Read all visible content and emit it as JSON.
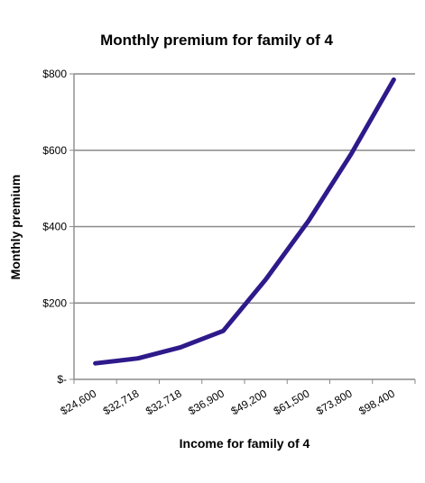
{
  "chart_data": {
    "type": "line",
    "title": "Monthly premium for family of 4",
    "xlabel": "Income for family of 4",
    "ylabel": "Monthly premium",
    "categories": [
      "$24,600",
      "$32,718",
      "$32,718",
      "$36,900",
      "$49,200",
      "$61,500",
      "$73,800",
      "$98,400"
    ],
    "series": [
      {
        "values": [
          42,
          55,
          84,
          127,
          262,
          415,
          590,
          785
        ],
        "color": "#2e1a8a"
      }
    ],
    "ylim": [
      0,
      800
    ],
    "yticks": [
      {
        "value": 0,
        "label": "$-"
      },
      {
        "value": 200,
        "label": "$200"
      },
      {
        "value": 400,
        "label": "$400"
      },
      {
        "value": 600,
        "label": "$600"
      },
      {
        "value": 800,
        "label": "$800"
      }
    ],
    "grid": true,
    "legend": "none"
  }
}
